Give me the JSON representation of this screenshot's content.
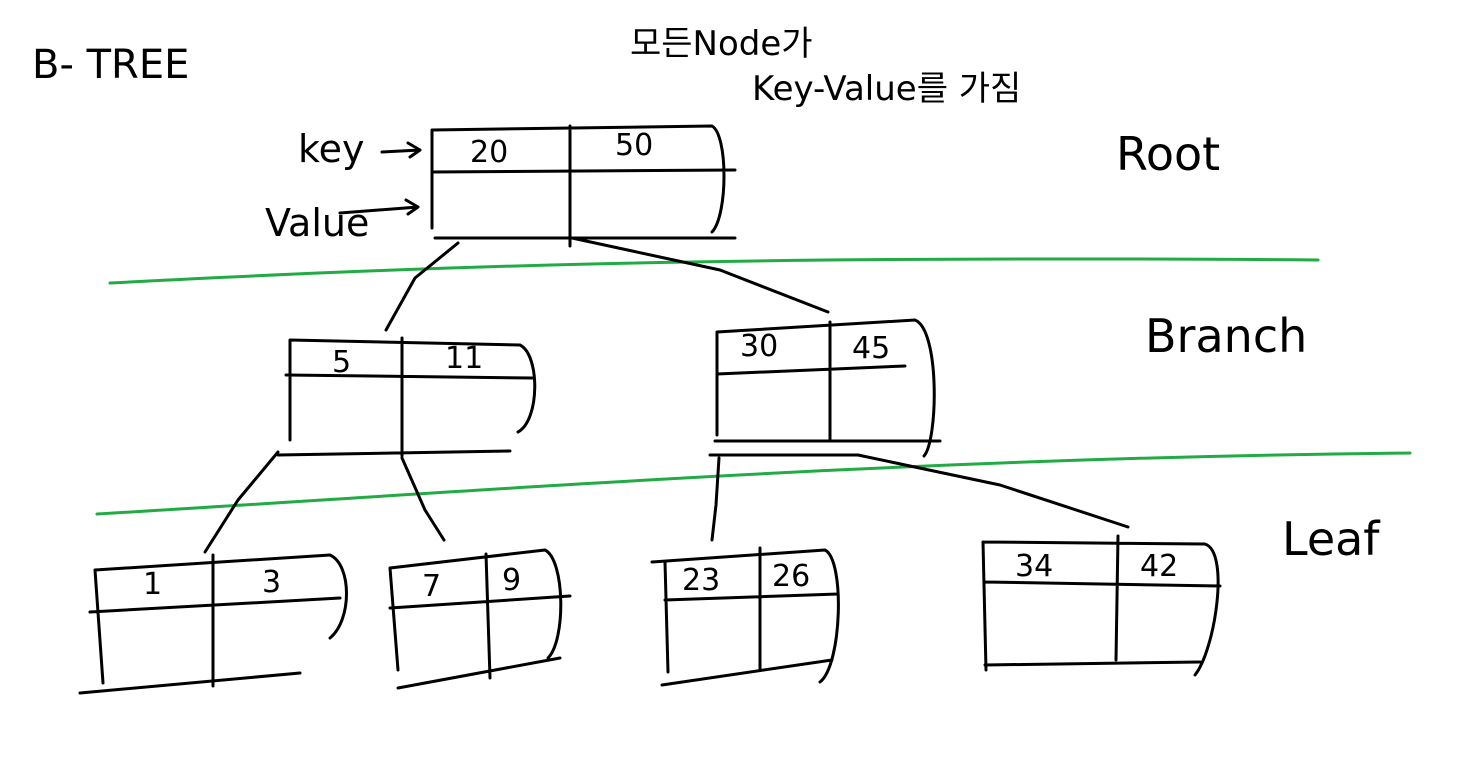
{
  "title": "B- TREE",
  "note": {
    "line1": "모든Node가",
    "line2": "Key-Value를 가짐"
  },
  "field_labels": {
    "key": "key",
    "value": "Value"
  },
  "levels": {
    "root": "Root",
    "branch": "Branch",
    "leaf": "Leaf"
  },
  "nodes": {
    "root": {
      "keys": [
        "20",
        "50"
      ]
    },
    "branch_left": {
      "keys": [
        "5",
        "11"
      ]
    },
    "branch_right": {
      "keys": [
        "30",
        "45"
      ]
    },
    "leaf_1": {
      "keys": [
        "1",
        "3"
      ]
    },
    "leaf_2": {
      "keys": [
        "7",
        "9"
      ]
    },
    "leaf_3": {
      "keys": [
        "23",
        "26"
      ]
    },
    "leaf_4": {
      "keys": [
        "34",
        "42"
      ]
    }
  },
  "colors": {
    "ink": "#000000",
    "separator": "#22aa44",
    "background": "#ffffff"
  }
}
